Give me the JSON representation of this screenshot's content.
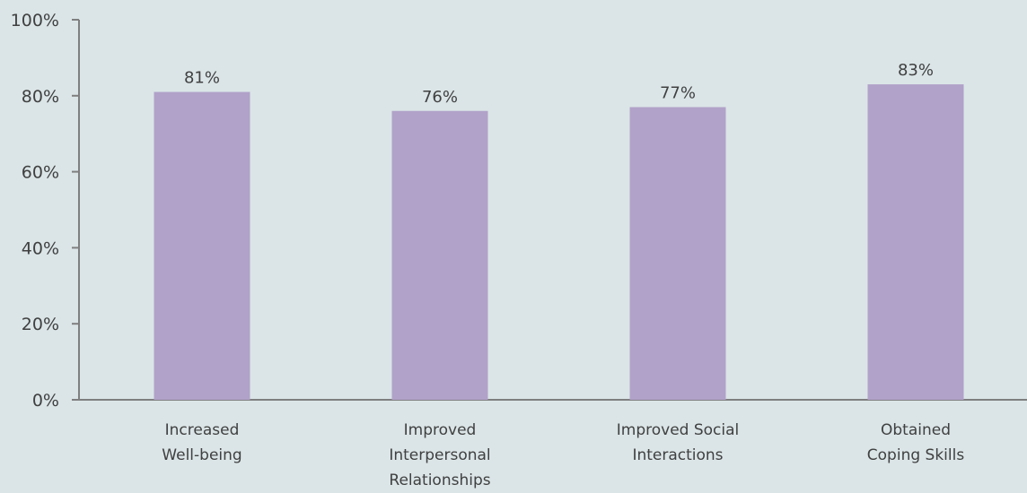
{
  "colors": {
    "background": "#dbe5e7",
    "bar": "#b1a2c9",
    "axis": "#7f7f7f",
    "text": "#404040"
  },
  "chart_data": {
    "type": "bar",
    "categories": [
      [
        "Increased",
        "Well-being"
      ],
      [
        "Improved",
        "Interpersonal",
        "Relationships"
      ],
      [
        "Improved Social",
        "Interactions"
      ],
      [
        "Obtained",
        "Coping Skills"
      ]
    ],
    "values": [
      81,
      76,
      77,
      83
    ],
    "data_labels": [
      "81%",
      "76%",
      "77%",
      "83%"
    ],
    "ylim": [
      0,
      100
    ],
    "yticks": [
      0,
      20,
      40,
      60,
      80,
      100
    ],
    "ytick_labels": [
      "0%",
      "20%",
      "40%",
      "60%",
      "80%",
      "100%"
    ],
    "grid": false,
    "legend": "none"
  }
}
